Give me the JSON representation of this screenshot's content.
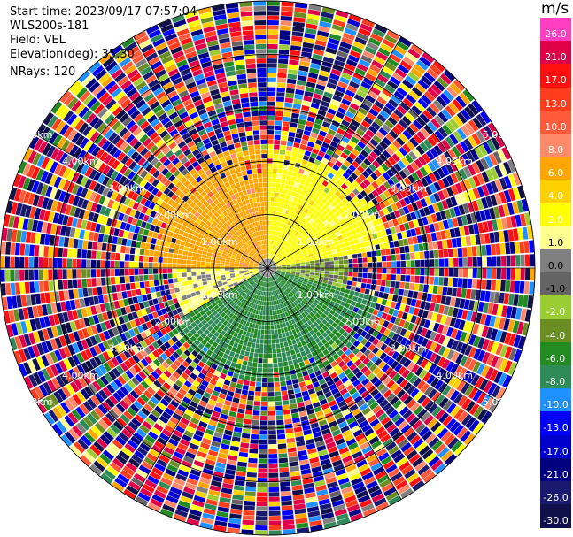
{
  "header": {
    "start_time": "Start time: 2023/09/17 07:57:04",
    "instrument": "WLS200s-181",
    "field": "Field: VEL",
    "elevation": "Elevation(deg): 35.30",
    "nrays": "NRays: 120"
  },
  "colorbar": {
    "unit": "m/s",
    "levels": [
      "26.0",
      "21.0",
      "17.0",
      "13.0",
      "10.0",
      "8.0",
      "6.0",
      "4.0",
      "2.0",
      "1.0",
      "0.0",
      "-1.0",
      "-2.0",
      "-4.0",
      "-6.0",
      "-8.0",
      "-10.0",
      "-13.0",
      "-17.0",
      "-21.0",
      "-26.0",
      "-30.0"
    ],
    "colors": [
      "#ff3fc0",
      "#e0004a",
      "#ff1010",
      "#ff3c1c",
      "#ff5a3a",
      "#ff8a6a",
      "#ffa500",
      "#ffd000",
      "#ffff00",
      "#ffff90",
      "#808080",
      "#646464",
      "#9acd32",
      "#6b8e23",
      "#228b22",
      "#2e8b57",
      "#1e90ff",
      "#0000ff",
      "#0000cd",
      "#000080",
      "#191970",
      "#10104a"
    ]
  },
  "chart_data": {
    "type": "heatmap",
    "projection": "polar PPI (azimuth vs range)",
    "field": "VEL",
    "unit": "m/s",
    "nrays": 120,
    "range_rings_km": [
      1,
      2,
      3,
      4,
      5
    ],
    "ring_labels": [
      "1.00km",
      "2.00km",
      "3.00km",
      "4.00km",
      "5.00km"
    ],
    "max_range_km": 5.0,
    "colorbar_range": [
      -30,
      26
    ],
    "pattern": [
      {
        "az_from": 270,
        "az_to": 360,
        "range_km": [
          0.2,
          2.3
        ],
        "value": 7.0
      },
      {
        "az_from": 0,
        "az_to": 80,
        "range_km": [
          0.2,
          2.3
        ],
        "value": 3.0
      },
      {
        "az_from": 80,
        "az_to": 105,
        "range_km": [
          0.2,
          1.5
        ],
        "value": -1.5
      },
      {
        "az_from": 105,
        "az_to": 240,
        "range_km": [
          0.2,
          2.1
        ],
        "value": -6.0
      },
      {
        "az_from": 240,
        "az_to": 270,
        "range_km": [
          0.2,
          1.8
        ],
        "value": 1.5
      }
    ],
    "far_range_km": [
      2.2,
      5.0
    ],
    "far_range_character": "noise (random values across full scale)",
    "grid": true
  }
}
